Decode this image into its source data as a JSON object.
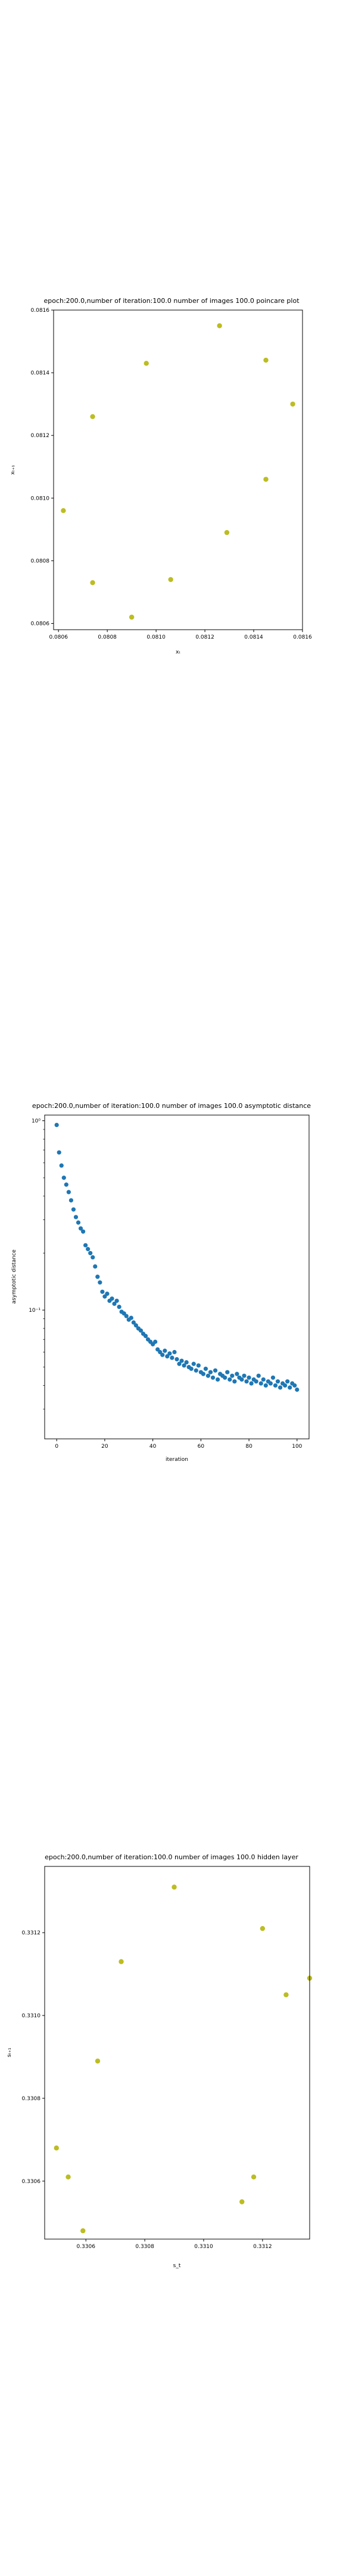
{
  "chart_data": [
    {
      "type": "scatter",
      "title": "epoch:200.0,number of iteration:100.0 number of images 100.0 poincare plot",
      "xlabel": "xₜ",
      "ylabel": "xₜ₊₁",
      "xlim": [
        0.08058,
        0.0816
      ],
      "ylim": [
        0.08058,
        0.0816
      ],
      "xticks": [
        0.0806,
        0.0808,
        0.081,
        0.0812,
        0.0814,
        0.0816
      ],
      "yticks": [
        0.0806,
        0.0808,
        0.081,
        0.0812,
        0.0814,
        0.0816
      ],
      "xtick_labels": [
        "0.0806",
        "0.0808",
        "0.0810",
        "0.0812",
        "0.0814",
        "0.0816"
      ],
      "ytick_labels": [
        "0.0806",
        "0.0808",
        "0.0810",
        "0.0812",
        "0.0814",
        "0.0816"
      ],
      "color": "#bcbd22",
      "x": [
        0.08062,
        0.08074,
        0.0809,
        0.08096,
        0.08106,
        0.08126,
        0.08129,
        0.08145,
        0.08145,
        0.08156,
        0.08074
      ],
      "y": [
        0.08096,
        0.08073,
        0.08062,
        0.08143,
        0.08074,
        0.08155,
        0.08089,
        0.08106,
        0.08144,
        0.0813,
        0.08126
      ]
    },
    {
      "type": "scatter",
      "title": "epoch:200.0,number of iteration:100.0  number of images 100.0 asymptotic distance",
      "xlabel": "iteration",
      "ylabel": "asymptotic distance",
      "yscale": "log",
      "xlim": [
        -5,
        105
      ],
      "ylim_log10": [
        -1.68,
        0.03
      ],
      "xticks": [
        0,
        20,
        40,
        60,
        80,
        100
      ],
      "xtick_labels": [
        "0",
        "20",
        "40",
        "60",
        "80",
        "100"
      ],
      "yticks": [
        0.1,
        1
      ],
      "ytick_labels": [
        "10⁻¹",
        "10⁰"
      ],
      "color": "#1f77b4",
      "y": [
        0.95,
        0.68,
        0.58,
        0.5,
        0.46,
        0.42,
        0.38,
        0.34,
        0.31,
        0.29,
        0.27,
        0.26,
        0.22,
        0.21,
        0.2,
        0.19,
        0.17,
        0.15,
        0.14,
        0.125,
        0.118,
        0.122,
        0.112,
        0.115,
        0.108,
        0.112,
        0.104,
        0.098,
        0.096,
        0.093,
        0.089,
        0.091,
        0.086,
        0.083,
        0.08,
        0.078,
        0.075,
        0.073,
        0.07,
        0.068,
        0.066,
        0.068,
        0.062,
        0.06,
        0.058,
        0.061,
        0.057,
        0.059,
        0.056,
        0.06,
        0.055,
        0.052,
        0.054,
        0.051,
        0.053,
        0.05,
        0.049,
        0.052,
        0.048,
        0.051,
        0.047,
        0.046,
        0.049,
        0.045,
        0.047,
        0.044,
        0.048,
        0.043,
        0.046,
        0.045,
        0.044,
        0.047,
        0.043,
        0.045,
        0.042,
        0.046,
        0.044,
        0.043,
        0.045,
        0.042,
        0.044,
        0.041,
        0.043,
        0.042,
        0.045,
        0.041,
        0.043,
        0.04,
        0.042,
        0.041,
        0.044,
        0.04,
        0.042,
        0.039,
        0.041,
        0.04,
        0.042,
        0.039,
        0.041,
        0.04,
        0.038
      ]
    },
    {
      "type": "scatter",
      "title": "epoch:200.0,number of iteration:100.0  number of images 100.0 hidden layer",
      "xlabel": "s_t",
      "ylabel": "sₜ₊₁",
      "xlim": [
        0.33046,
        0.33136
      ],
      "ylim": [
        0.33046,
        0.33136
      ],
      "xticks": [
        0.3306,
        0.3308,
        0.331,
        0.3312
      ],
      "xtick_labels": [
        "0.3306",
        "0.3308",
        "0.3310",
        "0.3312"
      ],
      "yticks": [
        0.3306,
        0.3308,
        0.331,
        0.3312
      ],
      "ytick_labels": [
        "0.3306",
        "0.3308",
        "0.3310",
        "0.3312"
      ],
      "color": "#bcbd22",
      "x": [
        0.3305,
        0.33054,
        0.33059,
        0.33064,
        0.33072,
        0.3309,
        0.33113,
        0.33117,
        0.3312,
        0.33128,
        0.33136
      ],
      "y": [
        0.33068,
        0.33061,
        0.33048,
        0.33089,
        0.33113,
        0.33131,
        0.33055,
        0.33061,
        0.33121,
        0.33105,
        0.33109
      ]
    }
  ]
}
